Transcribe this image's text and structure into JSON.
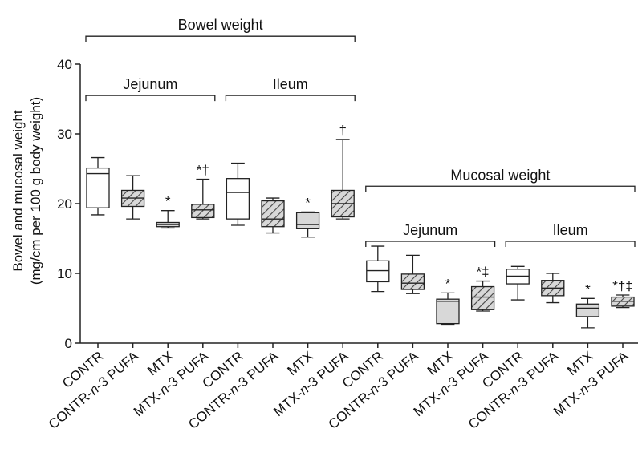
{
  "colors": {
    "stroke": "#222222",
    "fill_white": "#ffffff",
    "fill_gray": "#d8d8d8",
    "hatch": "#444444"
  },
  "chart_data": {
    "type": "boxplot",
    "xlabel": "",
    "ylabel": [
      "Bowel and mucosal weight",
      "(mg/cm per 100 g body weight)"
    ],
    "ylim": [
      0,
      40
    ],
    "yticks": [
      0,
      10,
      20,
      30,
      40
    ],
    "grid": false,
    "legend": "none",
    "categories": [
      "CONTR",
      "CONTR-n-3 PUFA",
      "MTX",
      "MTX-n-3 PUFA",
      "CONTR",
      "CONTR-n-3 PUFA",
      "MTX",
      "MTX-n-3 PUFA",
      "CONTR",
      "CONTR-n-3 PUFA",
      "MTX",
      "MTX-n-3 PUFA",
      "CONTR",
      "CONTR-n-3 PUFA",
      "MTX",
      "MTX-n-3 PUFA"
    ],
    "boxes": [
      {
        "min": 18.4,
        "q1": 19.4,
        "median": 24.3,
        "q3": 25.1,
        "max": 26.6,
        "fill": "white",
        "sig": ""
      },
      {
        "min": 17.8,
        "q1": 19.6,
        "median": 20.8,
        "q3": 21.9,
        "max": 24.0,
        "fill": "hatch",
        "sig": ""
      },
      {
        "min": 16.5,
        "q1": 16.7,
        "median": 17.0,
        "q3": 17.3,
        "max": 19.0,
        "fill": "gray",
        "sig": "*"
      },
      {
        "min": 17.8,
        "q1": 18.0,
        "median": 19.1,
        "q3": 19.9,
        "max": 23.5,
        "fill": "hatch",
        "sig": "*†"
      },
      {
        "min": 16.9,
        "q1": 17.8,
        "median": 21.6,
        "q3": 23.6,
        "max": 25.8,
        "fill": "white",
        "sig": ""
      },
      {
        "min": 15.8,
        "q1": 16.7,
        "median": 17.8,
        "q3": 20.4,
        "max": 20.8,
        "fill": "hatch",
        "sig": ""
      },
      {
        "min": 15.2,
        "q1": 16.4,
        "median": 17.0,
        "q3": 18.7,
        "max": 18.8,
        "fill": "gray",
        "sig": "*"
      },
      {
        "min": 17.8,
        "q1": 18.1,
        "median": 20.0,
        "q3": 21.9,
        "max": 29.2,
        "fill": "hatch",
        "sig": "†"
      },
      {
        "min": 7.4,
        "q1": 8.8,
        "median": 10.4,
        "q3": 11.8,
        "max": 13.9,
        "fill": "white",
        "sig": ""
      },
      {
        "min": 7.1,
        "q1": 7.7,
        "median": 8.6,
        "q3": 9.9,
        "max": 12.6,
        "fill": "hatch",
        "sig": ""
      },
      {
        "min": 2.7,
        "q1": 2.8,
        "median": 6.0,
        "q3": 6.3,
        "max": 7.2,
        "fill": "gray",
        "sig": "*"
      },
      {
        "min": 4.6,
        "q1": 4.8,
        "median": 6.6,
        "q3": 8.1,
        "max": 8.9,
        "fill": "hatch",
        "sig": "*‡"
      },
      {
        "min": 6.2,
        "q1": 8.5,
        "median": 9.6,
        "q3": 10.6,
        "max": 11.0,
        "fill": "white",
        "sig": ""
      },
      {
        "min": 5.8,
        "q1": 6.8,
        "median": 7.9,
        "q3": 9.0,
        "max": 10.0,
        "fill": "hatch",
        "sig": ""
      },
      {
        "min": 2.2,
        "q1": 3.8,
        "median": 5.0,
        "q3": 5.6,
        "max": 6.4,
        "fill": "gray",
        "sig": "*"
      },
      {
        "min": 5.1,
        "q1": 5.3,
        "median": 6.0,
        "q3": 6.6,
        "max": 6.9,
        "fill": "hatch",
        "sig": "*†‡"
      }
    ],
    "brackets": [
      {
        "label": "Bowel weight",
        "from": 0,
        "to": 7,
        "level": 44
      },
      {
        "label": "Jejunum",
        "from": 0,
        "to": 3,
        "level": 35.5
      },
      {
        "label": "Ileum",
        "from": 4,
        "to": 7,
        "level": 35.5
      },
      {
        "label": "Mucosal weight",
        "from": 8,
        "to": 15,
        "level": 22.5
      },
      {
        "label": "Jejunum",
        "from": 8,
        "to": 11,
        "level": 14.6
      },
      {
        "label": "Ileum",
        "from": 12,
        "to": 15,
        "level": 14.6
      }
    ]
  }
}
